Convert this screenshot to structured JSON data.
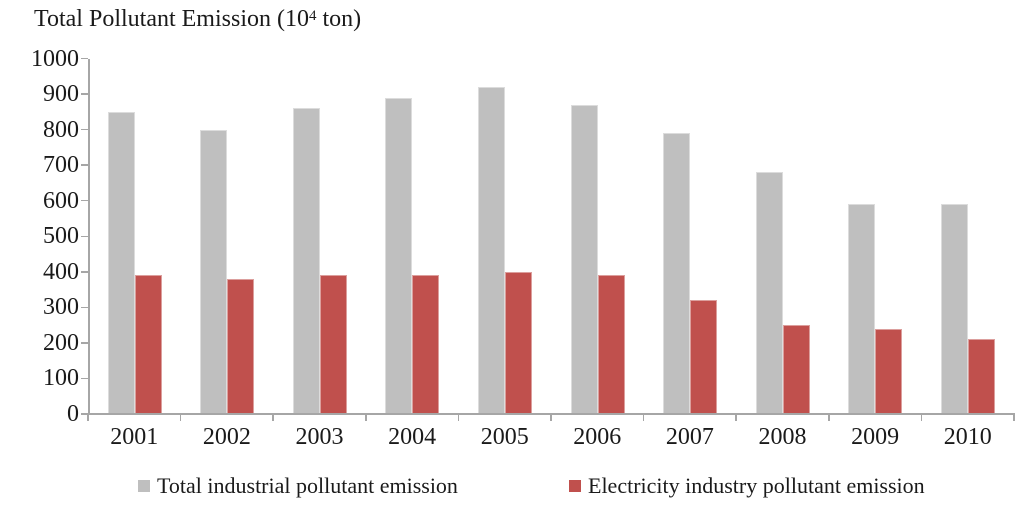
{
  "chart_data": {
    "type": "bar",
    "title": "Total Pollutant Emission (10⁴ ton)",
    "title_parts": {
      "base": "Total Pollutant Emission (10",
      "sup": "4",
      "tail": " ton)"
    },
    "xlabel": "",
    "ylabel": "",
    "categories": [
      "2001",
      "2002",
      "2003",
      "2004",
      "2005",
      "2006",
      "2007",
      "2008",
      "2009",
      "2010"
    ],
    "series": [
      {
        "key": "total-industrial",
        "name": "Total industrial pollutant emission",
        "color": "#bfbfbf",
        "values": [
          850,
          800,
          860,
          890,
          920,
          870,
          790,
          680,
          590,
          590
        ]
      },
      {
        "key": "electricity",
        "name": "Electricity industry pollutant emission",
        "color": "#c0504d",
        "values": [
          390,
          380,
          390,
          390,
          400,
          390,
          320,
          250,
          240,
          210
        ]
      }
    ],
    "ylim": [
      0,
      1000
    ],
    "ytick_step": 100,
    "yticks": [
      0,
      100,
      200,
      300,
      400,
      500,
      600,
      700,
      800,
      900,
      1000
    ],
    "grid": false,
    "legend_position": "bottom",
    "colors": {
      "axis": "#a6a6a6",
      "text": "#1a1a1a",
      "background": "#ffffff"
    }
  }
}
